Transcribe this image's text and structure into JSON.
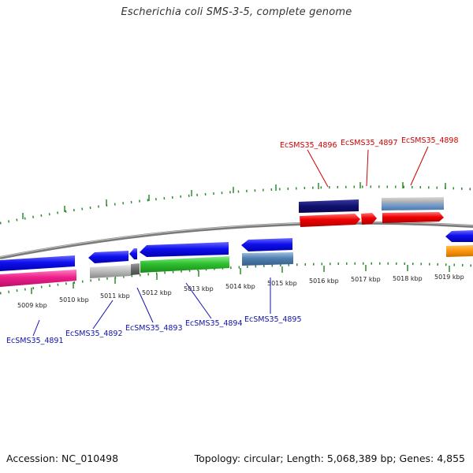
{
  "title": "Escherichia coli SMS-3-5, complete genome",
  "footer": {
    "accession": "Accession: NC_010498",
    "summary": "Topology: circular; Length: 5,068,389 bp; Genes: 4,855"
  },
  "ticks": [
    "5009 kbp",
    "5010 kbp",
    "5011 kbp",
    "5012 kbp",
    "5013 kbp",
    "5014 kbp",
    "5015 kbp",
    "5016 kbp",
    "5017 kbp",
    "5018 kbp",
    "5019 kbp"
  ],
  "genes_top": [
    "EcSMS35_4896",
    "EcSMS35_4897",
    "EcSMS35_4898"
  ],
  "genes_bottom": [
    "EcSMS35_4891",
    "EcSMS35_4892",
    "EcSMS35_4893",
    "EcSMS35_4894",
    "EcSMS35_4895"
  ],
  "colors": {
    "forward_label": "#cc0000",
    "reverse_label": "#1111aa",
    "backbone": "#808080",
    "tick": "#2e8b2e"
  }
}
